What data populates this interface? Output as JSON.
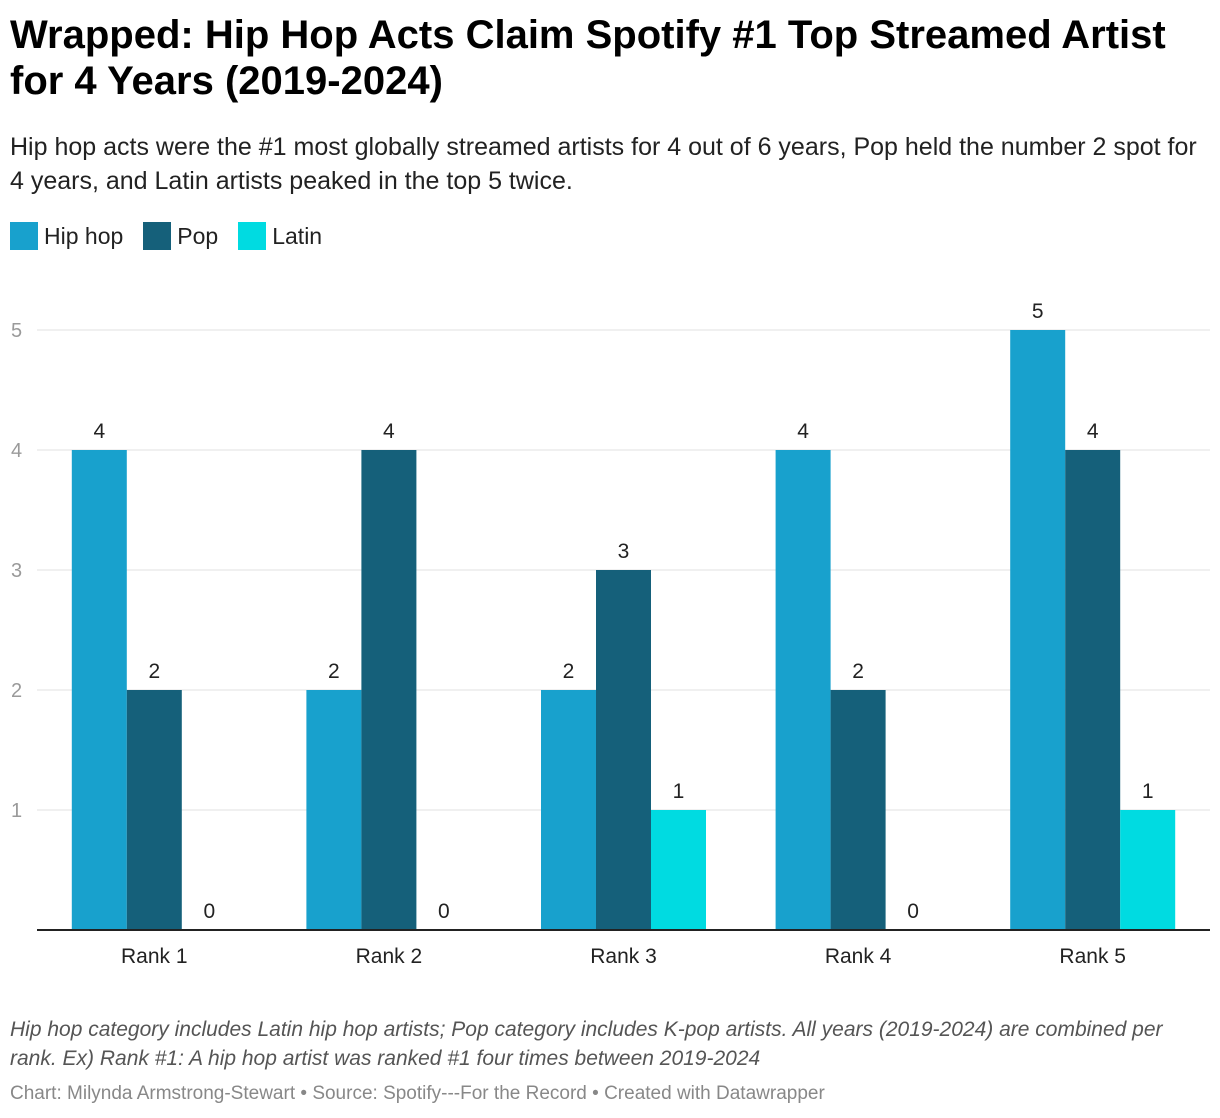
{
  "title": "Wrapped: Hip Hop Acts Claim Spotify #1 Top Streamed Artist for 4 Years (2019-2024)",
  "subtitle": "Hip hop acts were the #1 most globally streamed artists for 4 out of 6 years, Pop held the number 2 spot for 4 years, and Latin artists peaked in the top 5 twice.",
  "notes": "Hip hop category includes Latin hip hop artists; Pop category includes K-pop artists. All years (2019-2024) are combined per rank. Ex) Rank #1: A hip hop artist was ranked #1 four times between 2019-2024",
  "credit": {
    "chart": "Chart: Milynda Armstrong-Stewart",
    "source": "Source: Spotify---For the Record",
    "created": "Created with Datawrapper",
    "separator": " • "
  },
  "chart_data": {
    "type": "bar",
    "categories": [
      "Rank 1",
      "Rank 2",
      "Rank 3",
      "Rank 4",
      "Rank 5"
    ],
    "series": [
      {
        "name": "Hip hop",
        "color": "#18a1cd",
        "values": [
          4,
          2,
          2,
          4,
          5
        ]
      },
      {
        "name": "Pop",
        "color": "#15607a",
        "values": [
          2,
          4,
          3,
          2,
          4
        ]
      },
      {
        "name": "Latin",
        "color": "#00dbe1",
        "values": [
          0,
          0,
          1,
          0,
          1
        ]
      }
    ],
    "yticks": [
      1,
      2,
      3,
      4,
      5
    ],
    "ylim": [
      0,
      5.5
    ],
    "grid": true,
    "legend_position": "top-left",
    "data_labels": true
  }
}
